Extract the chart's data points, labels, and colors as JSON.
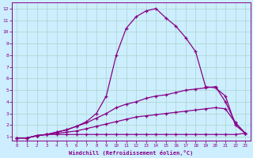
{
  "xlabel": "Windchill (Refroidissement éolien,°C)",
  "background_color": "#cceeff",
  "grid_color": "#aaddcc",
  "line_color": "#880088",
  "xlim": [
    -0.5,
    23.5
  ],
  "ylim": [
    0.7,
    12.5
  ],
  "xticks": [
    0,
    1,
    2,
    3,
    4,
    5,
    6,
    7,
    8,
    9,
    10,
    11,
    12,
    13,
    14,
    15,
    16,
    17,
    18,
    19,
    20,
    21,
    22,
    23
  ],
  "yticks": [
    1,
    2,
    3,
    4,
    5,
    6,
    7,
    8,
    9,
    10,
    11,
    12
  ],
  "lines": [
    {
      "x": [
        0,
        1,
        2,
        3,
        4,
        5,
        6,
        7,
        8,
        9,
        10,
        11,
        12,
        13,
        14,
        15,
        16,
        17,
        18,
        19,
        20,
        21,
        22,
        23
      ],
      "y": [
        0.9,
        0.9,
        1.1,
        1.2,
        1.2,
        1.2,
        1.2,
        1.2,
        1.2,
        1.2,
        1.2,
        1.2,
        1.2,
        1.2,
        1.2,
        1.2,
        1.2,
        1.2,
        1.2,
        1.2,
        1.2,
        1.2,
        1.2,
        1.3
      ]
    },
    {
      "x": [
        0,
        1,
        2,
        3,
        4,
        5,
        6,
        7,
        8,
        9,
        10,
        11,
        12,
        13,
        14,
        15,
        16,
        17,
        18,
        19,
        20,
        21,
        22,
        23
      ],
      "y": [
        0.9,
        0.9,
        1.1,
        1.2,
        1.3,
        1.4,
        1.5,
        1.7,
        1.9,
        2.1,
        2.3,
        2.5,
        2.7,
        2.8,
        2.9,
        3.0,
        3.1,
        3.2,
        3.3,
        3.4,
        3.5,
        3.4,
        2.2,
        1.3
      ]
    },
    {
      "x": [
        0,
        1,
        2,
        3,
        4,
        5,
        6,
        7,
        8,
        9,
        10,
        11,
        12,
        13,
        14,
        15,
        16,
        17,
        18,
        19,
        20,
        21,
        22,
        23
      ],
      "y": [
        0.9,
        0.9,
        1.1,
        1.2,
        1.4,
        1.6,
        1.9,
        2.2,
        2.6,
        3.0,
        3.5,
        3.8,
        4.0,
        4.3,
        4.5,
        4.6,
        4.8,
        5.0,
        5.1,
        5.2,
        5.3,
        4.0,
        2.2,
        1.3
      ]
    },
    {
      "x": [
        0,
        1,
        2,
        3,
        4,
        5,
        6,
        7,
        8,
        9,
        10,
        11,
        12,
        13,
        14,
        15,
        16,
        17,
        18,
        19,
        20,
        21,
        22,
        23
      ],
      "y": [
        0.9,
        0.9,
        1.1,
        1.2,
        1.4,
        1.6,
        1.9,
        2.3,
        3.0,
        4.5,
        8.0,
        10.3,
        11.3,
        11.8,
        12.0,
        11.2,
        10.5,
        9.5,
        8.3,
        5.3,
        5.2,
        4.5,
        2.0,
        1.3
      ]
    }
  ]
}
